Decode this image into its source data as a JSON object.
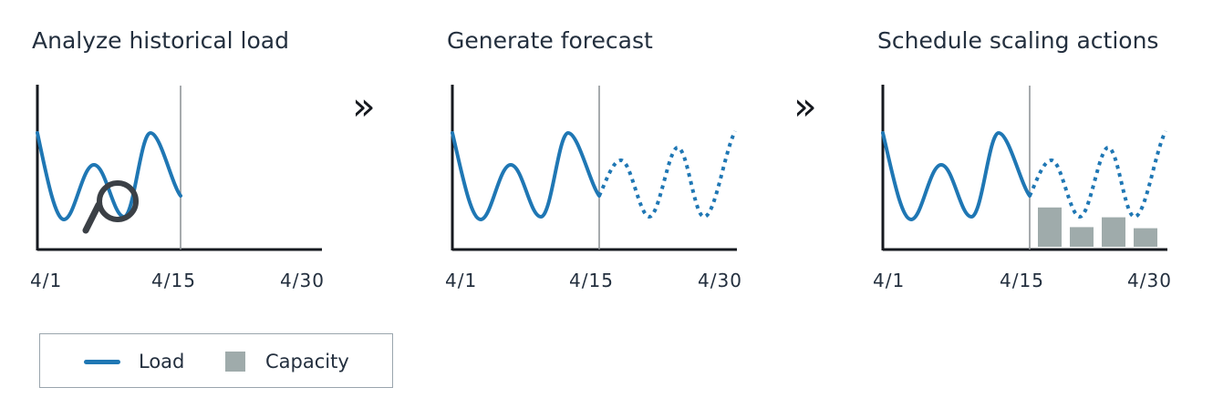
{
  "colors": {
    "load": "#1f77b4",
    "capacity": "#9fabab",
    "axis": "#16191f",
    "divider": "#8a8f94",
    "magnifier": "#3b4046"
  },
  "steps": [
    {
      "title": "Analyze historical load",
      "ticks": [
        "4/1",
        "4/15",
        "4/30"
      ],
      "icon": "magnifier-icon"
    },
    {
      "title": "Generate forecast",
      "ticks": [
        "4/1",
        "4/15",
        "4/30"
      ]
    },
    {
      "title": "Schedule scaling actions",
      "ticks": [
        "4/1",
        "4/15",
        "4/30"
      ],
      "capacity_levels": [
        0.72,
        0.36,
        0.54,
        0.34
      ]
    }
  ],
  "arrows": [
    "»",
    "»"
  ],
  "legend": {
    "load_label": "Load",
    "capacity_label": "Capacity"
  }
}
